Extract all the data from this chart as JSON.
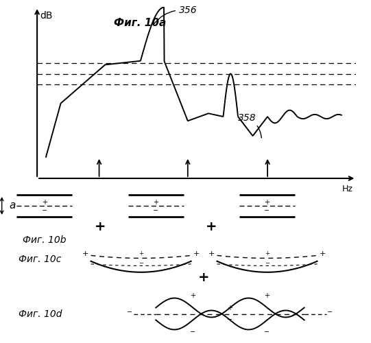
{
  "fig_label_10a": "Фиг. 10a",
  "fig_label_10b": "Фиг. 10b",
  "fig_label_10c": "Фиг. 10c",
  "fig_label_10d": "Фиг. 10d",
  "label_356": "356",
  "label_358": "358",
  "label_dB": "dB",
  "label_Hz": "Hz",
  "label_a": "a",
  "background_color": "#ffffff",
  "line_color": "#000000"
}
